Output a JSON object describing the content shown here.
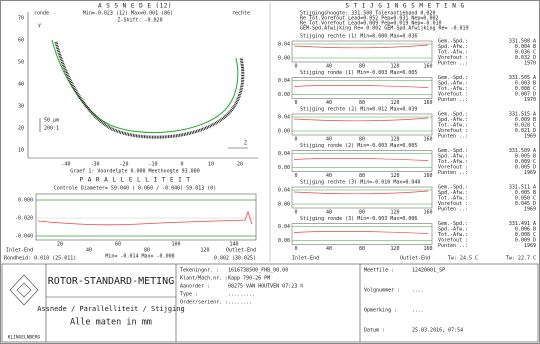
{
  "assnede": {
    "title": "A S S N E D E (12)",
    "ronde_label": "ronde",
    "minmax": "Min=-0.023 (12) Max=0.001 (86)",
    "rechte_label": "rechte",
    "zshift": "Z-Shift: -0.020",
    "yticks": [
      "70",
      "60",
      "50",
      "40",
      "30",
      "20",
      "10"
    ],
    "xticks": [
      "-40",
      "-30",
      "-20",
      "-10",
      "0",
      "10",
      "20"
    ],
    "scale": "50 µm",
    "ratio": "200:1",
    "z_label": "Z",
    "y_label": "Y",
    "footnote": "Graef 1: Voordelpte 0.000 Meethoogte 93.000"
  },
  "parallelliteit": {
    "title": "P A R A L L E L L I T E I T",
    "diameter": "Controle Diameter= 59.040 ( 0.060 / -0.040) 59.013 (0)",
    "yticks": [
      "0.000",
      "-0.020",
      "-0.040"
    ],
    "xticks": [
      "20",
      "40",
      "60",
      "80",
      "100",
      "120",
      "140"
    ],
    "inlet": "Inlet-End",
    "minmax": "Min= -0.014 Max= -0.008",
    "outlet": "Outlet-End",
    "rondheid_left": "Rondheid: 0.010 (25.011)",
    "rondheid_right": "0.002 (30.025)"
  },
  "stijging": {
    "title": "S T I J G I N G S M E T I N G",
    "info": [
      "Stijgingshoogte: 331.500 Tolerantieband 0.020",
      "Re Tot.Vorefout Lead=0.052 Pep=0.031 Nep=0.002",
      "Re Tot.Vorefout Lead=0.009 Pep=0.019 Nep=-0.010",
      "GEM-Spd.Afwijking Re= 0.002 GEM-Spd.Afwijking Re= -0.019"
    ],
    "yticks": [
      "0.04",
      "0.00"
    ],
    "xticks": [
      "0",
      "40",
      "80",
      "120",
      "160"
    ],
    "stat_labels": [
      "Gem.-Spd.:",
      "Spd.-Afw.:",
      "Tot.-Afw.:",
      "Vorefout :",
      "Punten ..:"
    ],
    "panels": [
      {
        "title": "Stijging rechte (1)  Min=0.000 Max=0.036",
        "stats": [
          "331.508 A",
          "0.004 B",
          "0.036 C",
          "0.032 D",
          "1970"
        ]
      },
      {
        "title": "Stijging ronde (1)  Min=-0.003 Max=0.005",
        "stats": [
          "331.505 A",
          "0.003 B",
          "0.008 C",
          "0.007 D",
          "1970"
        ]
      },
      {
        "title": "Stijging rechte (2)  Min=0.012 Max=0.039",
        "stats": [
          "331.515 A",
          "0.009 B",
          "0.028 C",
          "0.021 D",
          "1969"
        ]
      },
      {
        "title": "Stijging ronde (2)  Min=-0.003 Max=0.005",
        "stats": [
          "331.509 A",
          "0.005 B",
          "0.009 C",
          "0.005 D",
          "1969"
        ]
      },
      {
        "title": "Stijging rechte (3)  Min=-0.010 Max=0.040",
        "stats": [
          "331.511 A",
          "0.005 B",
          "0.050 C",
          "0.045 D",
          "1969"
        ]
      },
      {
        "title": "Stijging ronde (3)  Min=-0.003 Max=0.006",
        "stats": [
          "331.491 A",
          "0.006 B",
          "0.008 C",
          "0.009 D",
          "1969"
        ]
      }
    ],
    "inlet": "Inlet-End",
    "outlet": "Outlet-End",
    "tw_left": "Tw: 24.5 C",
    "tw_right": "Tw: 22.7 C"
  },
  "footer": {
    "logo": "KLINGELNBERG",
    "title": "ROTOR-STANDARD-METING",
    "subtitle": "Assnede / Parallelliteit / Stijging",
    "units": "Alle maten in mm",
    "fields": [
      [
        "Tekeningnr. :",
        "1616738500_FHB_00.00"
      ],
      [
        "Klant/Mach.nr. :",
        "Kapp 790-26 PM"
      ],
      [
        "Aanorder :",
        "08275 VAN HOUTVEN 07:23 h"
      ],
      [
        "Type :",
        "........."
      ],
      [
        "Order/serienr. :",
        "........"
      ]
    ],
    "fields_right": [
      [
        "Meetfile :",
        "12420001_SP"
      ],
      [
        "Volgnummer :",
        "...."
      ],
      [
        "Opmerking :",
        "...."
      ],
      [
        "Datum :",
        "25.03.2016, 07:54"
      ]
    ]
  }
}
